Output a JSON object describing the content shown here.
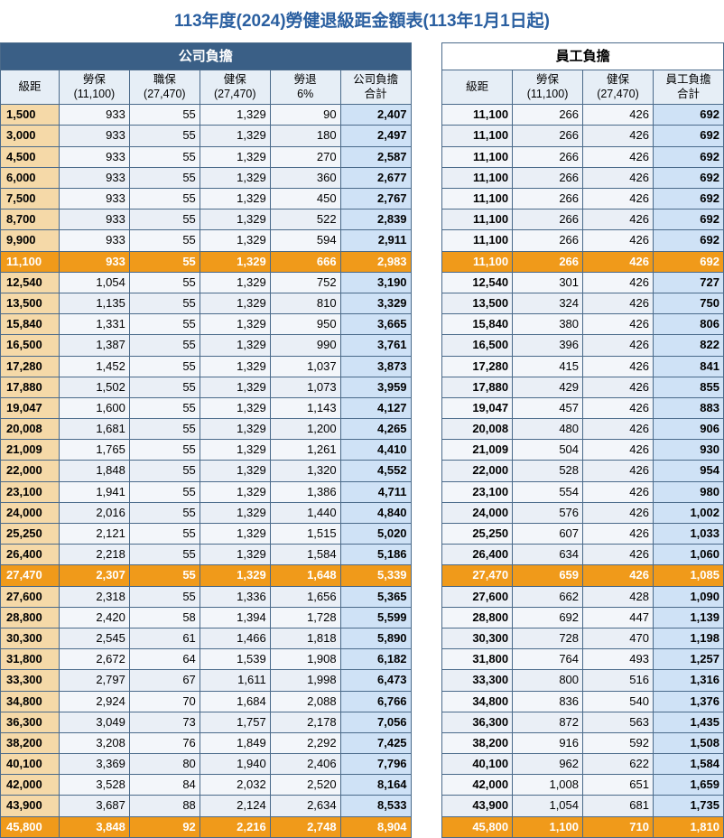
{
  "title": "113年度(2024)勞健退級距金額表(113年1月1日起)",
  "title_color": "#2a5fa0",
  "title_fontsize": 19,
  "colors": {
    "border": "#4a6a8a",
    "header_company_bg": "#3a5f86",
    "header_company_fg": "#ffffff",
    "header_employee_bg": "#ffffff",
    "header_employee_fg": "#000000",
    "colhead_bg": "#e6eef6",
    "bracket_bg": "#f5d9a8",
    "subtotal_bg": "#cfe2f6",
    "normal_bg": "#f3f6fa",
    "alt_bg": "#eaeff6",
    "highlight_bg": "#f09a1a",
    "highlight_fg": "#ffffff",
    "text": "#000000"
  },
  "sections": {
    "company": "公司負擔",
    "employee": "員工負擔"
  },
  "columns": {
    "bracket": "級距",
    "lao_bao": "勞保\n(11,100)",
    "zhi_bao": "職保\n(27,470)",
    "jian_bao": "健保\n(27,470)",
    "lao_tui": "勞退\n6%",
    "company_total": "公司負擔\n合計",
    "emp_bracket": "級距",
    "emp_lao_bao": "勞保\n(11,100)",
    "emp_jian_bao": "健保\n(27,470)",
    "emp_total": "員工負擔\n合計"
  },
  "col_widths_pct": [
    7.5,
    9,
    9,
    9,
    9,
    9,
    4,
    9,
    9,
    9,
    9
  ],
  "rows": [
    {
      "b": "1,500",
      "lb": "933",
      "zb": "55",
      "jb": "1,329",
      "lt": "90",
      "ct": "2,407",
      "eb": "11,100",
      "elb": "266",
      "ejb": "426",
      "et": "692"
    },
    {
      "b": "3,000",
      "lb": "933",
      "zb": "55",
      "jb": "1,329",
      "lt": "180",
      "ct": "2,497",
      "eb": "11,100",
      "elb": "266",
      "ejb": "426",
      "et": "692"
    },
    {
      "b": "4,500",
      "lb": "933",
      "zb": "55",
      "jb": "1,329",
      "lt": "270",
      "ct": "2,587",
      "eb": "11,100",
      "elb": "266",
      "ejb": "426",
      "et": "692"
    },
    {
      "b": "6,000",
      "lb": "933",
      "zb": "55",
      "jb": "1,329",
      "lt": "360",
      "ct": "2,677",
      "eb": "11,100",
      "elb": "266",
      "ejb": "426",
      "et": "692"
    },
    {
      "b": "7,500",
      "lb": "933",
      "zb": "55",
      "jb": "1,329",
      "lt": "450",
      "ct": "2,767",
      "eb": "11,100",
      "elb": "266",
      "ejb": "426",
      "et": "692"
    },
    {
      "b": "8,700",
      "lb": "933",
      "zb": "55",
      "jb": "1,329",
      "lt": "522",
      "ct": "2,839",
      "eb": "11,100",
      "elb": "266",
      "ejb": "426",
      "et": "692"
    },
    {
      "b": "9,900",
      "lb": "933",
      "zb": "55",
      "jb": "1,329",
      "lt": "594",
      "ct": "2,911",
      "eb": "11,100",
      "elb": "266",
      "ejb": "426",
      "et": "692"
    },
    {
      "b": "11,100",
      "lb": "933",
      "zb": "55",
      "jb": "1,329",
      "lt": "666",
      "ct": "2,983",
      "eb": "11,100",
      "elb": "266",
      "ejb": "426",
      "et": "692",
      "hl": true
    },
    {
      "b": "12,540",
      "lb": "1,054",
      "zb": "55",
      "jb": "1,329",
      "lt": "752",
      "ct": "3,190",
      "eb": "12,540",
      "elb": "301",
      "ejb": "426",
      "et": "727"
    },
    {
      "b": "13,500",
      "lb": "1,135",
      "zb": "55",
      "jb": "1,329",
      "lt": "810",
      "ct": "3,329",
      "eb": "13,500",
      "elb": "324",
      "ejb": "426",
      "et": "750"
    },
    {
      "b": "15,840",
      "lb": "1,331",
      "zb": "55",
      "jb": "1,329",
      "lt": "950",
      "ct": "3,665",
      "eb": "15,840",
      "elb": "380",
      "ejb": "426",
      "et": "806"
    },
    {
      "b": "16,500",
      "lb": "1,387",
      "zb": "55",
      "jb": "1,329",
      "lt": "990",
      "ct": "3,761",
      "eb": "16,500",
      "elb": "396",
      "ejb": "426",
      "et": "822"
    },
    {
      "b": "17,280",
      "lb": "1,452",
      "zb": "55",
      "jb": "1,329",
      "lt": "1,037",
      "ct": "3,873",
      "eb": "17,280",
      "elb": "415",
      "ejb": "426",
      "et": "841"
    },
    {
      "b": "17,880",
      "lb": "1,502",
      "zb": "55",
      "jb": "1,329",
      "lt": "1,073",
      "ct": "3,959",
      "eb": "17,880",
      "elb": "429",
      "ejb": "426",
      "et": "855"
    },
    {
      "b": "19,047",
      "lb": "1,600",
      "zb": "55",
      "jb": "1,329",
      "lt": "1,143",
      "ct": "4,127",
      "eb": "19,047",
      "elb": "457",
      "ejb": "426",
      "et": "883"
    },
    {
      "b": "20,008",
      "lb": "1,681",
      "zb": "55",
      "jb": "1,329",
      "lt": "1,200",
      "ct": "4,265",
      "eb": "20,008",
      "elb": "480",
      "ejb": "426",
      "et": "906"
    },
    {
      "b": "21,009",
      "lb": "1,765",
      "zb": "55",
      "jb": "1,329",
      "lt": "1,261",
      "ct": "4,410",
      "eb": "21,009",
      "elb": "504",
      "ejb": "426",
      "et": "930"
    },
    {
      "b": "22,000",
      "lb": "1,848",
      "zb": "55",
      "jb": "1,329",
      "lt": "1,320",
      "ct": "4,552",
      "eb": "22,000",
      "elb": "528",
      "ejb": "426",
      "et": "954"
    },
    {
      "b": "23,100",
      "lb": "1,941",
      "zb": "55",
      "jb": "1,329",
      "lt": "1,386",
      "ct": "4,711",
      "eb": "23,100",
      "elb": "554",
      "ejb": "426",
      "et": "980"
    },
    {
      "b": "24,000",
      "lb": "2,016",
      "zb": "55",
      "jb": "1,329",
      "lt": "1,440",
      "ct": "4,840",
      "eb": "24,000",
      "elb": "576",
      "ejb": "426",
      "et": "1,002"
    },
    {
      "b": "25,250",
      "lb": "2,121",
      "zb": "55",
      "jb": "1,329",
      "lt": "1,515",
      "ct": "5,020",
      "eb": "25,250",
      "elb": "607",
      "ejb": "426",
      "et": "1,033"
    },
    {
      "b": "26,400",
      "lb": "2,218",
      "zb": "55",
      "jb": "1,329",
      "lt": "1,584",
      "ct": "5,186",
      "eb": "26,400",
      "elb": "634",
      "ejb": "426",
      "et": "1,060"
    },
    {
      "b": "27,470",
      "lb": "2,307",
      "zb": "55",
      "jb": "1,329",
      "lt": "1,648",
      "ct": "5,339",
      "eb": "27,470",
      "elb": "659",
      "ejb": "426",
      "et": "1,085",
      "hl": true
    },
    {
      "b": "27,600",
      "lb": "2,318",
      "zb": "55",
      "jb": "1,336",
      "lt": "1,656",
      "ct": "5,365",
      "eb": "27,600",
      "elb": "662",
      "ejb": "428",
      "et": "1,090"
    },
    {
      "b": "28,800",
      "lb": "2,420",
      "zb": "58",
      "jb": "1,394",
      "lt": "1,728",
      "ct": "5,599",
      "eb": "28,800",
      "elb": "692",
      "ejb": "447",
      "et": "1,139"
    },
    {
      "b": "30,300",
      "lb": "2,545",
      "zb": "61",
      "jb": "1,466",
      "lt": "1,818",
      "ct": "5,890",
      "eb": "30,300",
      "elb": "728",
      "ejb": "470",
      "et": "1,198"
    },
    {
      "b": "31,800",
      "lb": "2,672",
      "zb": "64",
      "jb": "1,539",
      "lt": "1,908",
      "ct": "6,182",
      "eb": "31,800",
      "elb": "764",
      "ejb": "493",
      "et": "1,257"
    },
    {
      "b": "33,300",
      "lb": "2,797",
      "zb": "67",
      "jb": "1,611",
      "lt": "1,998",
      "ct": "6,473",
      "eb": "33,300",
      "elb": "800",
      "ejb": "516",
      "et": "1,316"
    },
    {
      "b": "34,800",
      "lb": "2,924",
      "zb": "70",
      "jb": "1,684",
      "lt": "2,088",
      "ct": "6,766",
      "eb": "34,800",
      "elb": "836",
      "ejb": "540",
      "et": "1,376"
    },
    {
      "b": "36,300",
      "lb": "3,049",
      "zb": "73",
      "jb": "1,757",
      "lt": "2,178",
      "ct": "7,056",
      "eb": "36,300",
      "elb": "872",
      "ejb": "563",
      "et": "1,435"
    },
    {
      "b": "38,200",
      "lb": "3,208",
      "zb": "76",
      "jb": "1,849",
      "lt": "2,292",
      "ct": "7,425",
      "eb": "38,200",
      "elb": "916",
      "ejb": "592",
      "et": "1,508"
    },
    {
      "b": "40,100",
      "lb": "3,369",
      "zb": "80",
      "jb": "1,940",
      "lt": "2,406",
      "ct": "7,796",
      "eb": "40,100",
      "elb": "962",
      "ejb": "622",
      "et": "1,584"
    },
    {
      "b": "42,000",
      "lb": "3,528",
      "zb": "84",
      "jb": "2,032",
      "lt": "2,520",
      "ct": "8,164",
      "eb": "42,000",
      "elb": "1,008",
      "ejb": "651",
      "et": "1,659"
    },
    {
      "b": "43,900",
      "lb": "3,687",
      "zb": "88",
      "jb": "2,124",
      "lt": "2,634",
      "ct": "8,533",
      "eb": "43,900",
      "elb": "1,054",
      "ejb": "681",
      "et": "1,735"
    },
    {
      "b": "45,800",
      "lb": "3,848",
      "zb": "92",
      "jb": "2,216",
      "lt": "2,748",
      "ct": "8,904",
      "eb": "45,800",
      "elb": "1,100",
      "ejb": "710",
      "et": "1,810",
      "hl": true
    }
  ]
}
